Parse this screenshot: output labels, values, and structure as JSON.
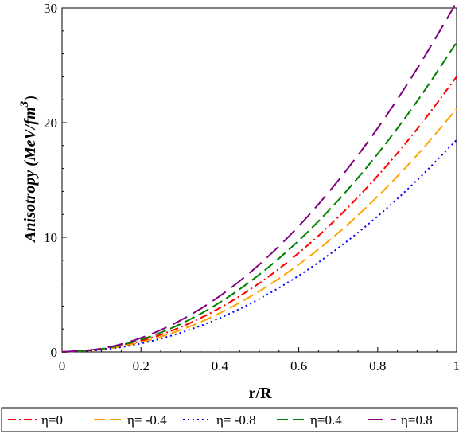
{
  "chart_data": {
    "type": "line",
    "xlabel": "r/R",
    "ylabel_main": "Anisotropy ",
    "ylabel_unit": "(MeV/fm",
    "ylabel_exp": "3",
    "ylabel_close": ")",
    "xlim": [
      0,
      1
    ],
    "ylim": [
      0,
      30
    ],
    "xticks": [
      0,
      0.2,
      0.4,
      0.6,
      0.8,
      1
    ],
    "xtick_labels": [
      "0",
      "0.2",
      "0.4",
      "0.6",
      "0.8",
      "1"
    ],
    "yticks": [
      0,
      10,
      20,
      30
    ],
    "ytick_labels": [
      "0",
      "10",
      "20",
      "30"
    ],
    "grid": false,
    "legend_position": "bottom",
    "series": [
      {
        "name": "η=0",
        "color": "#ff0000",
        "dash": "dashdot",
        "x": [
          0,
          0.1,
          0.2,
          0.3,
          0.4,
          0.5,
          0.6,
          0.7,
          0.8,
          0.9,
          1
        ],
        "y": [
          0,
          0.24,
          0.96,
          2.16,
          3.84,
          6.0,
          8.64,
          11.76,
          15.36,
          19.44,
          24.0
        ]
      },
      {
        "name": "η= -0.4",
        "color": "#ffa500",
        "dash": "longdash",
        "x": [
          0,
          0.1,
          0.2,
          0.3,
          0.4,
          0.5,
          0.6,
          0.7,
          0.8,
          0.9,
          1
        ],
        "y": [
          0,
          0.21,
          0.85,
          1.91,
          3.39,
          5.3,
          7.63,
          10.39,
          13.57,
          17.17,
          21.2
        ]
      },
      {
        "name": "η= -0.8",
        "color": "#0000ff",
        "dash": "dot",
        "x": [
          0,
          0.1,
          0.2,
          0.3,
          0.4,
          0.5,
          0.6,
          0.7,
          0.8,
          0.9,
          1
        ],
        "y": [
          0,
          0.19,
          0.74,
          1.67,
          2.96,
          4.63,
          6.66,
          9.07,
          11.84,
          14.99,
          18.5
        ]
      },
      {
        "name": "η=0.4",
        "color": "#008000",
        "dash": "longdash",
        "x": [
          0,
          0.1,
          0.2,
          0.3,
          0.4,
          0.5,
          0.6,
          0.7,
          0.8,
          0.9,
          1
        ],
        "y": [
          0,
          0.27,
          1.08,
          2.43,
          4.32,
          6.75,
          9.72,
          13.23,
          17.28,
          21.87,
          27.0
        ]
      },
      {
        "name": "η=0.8",
        "color": "#800080",
        "dash": "longdash2",
        "x": [
          0,
          0.1,
          0.2,
          0.3,
          0.4,
          0.5,
          0.6,
          0.7,
          0.8,
          0.9,
          1
        ],
        "y": [
          0,
          0.3,
          1.22,
          2.75,
          4.88,
          7.63,
          10.98,
          14.95,
          19.52,
          24.71,
          30.5
        ]
      }
    ]
  }
}
